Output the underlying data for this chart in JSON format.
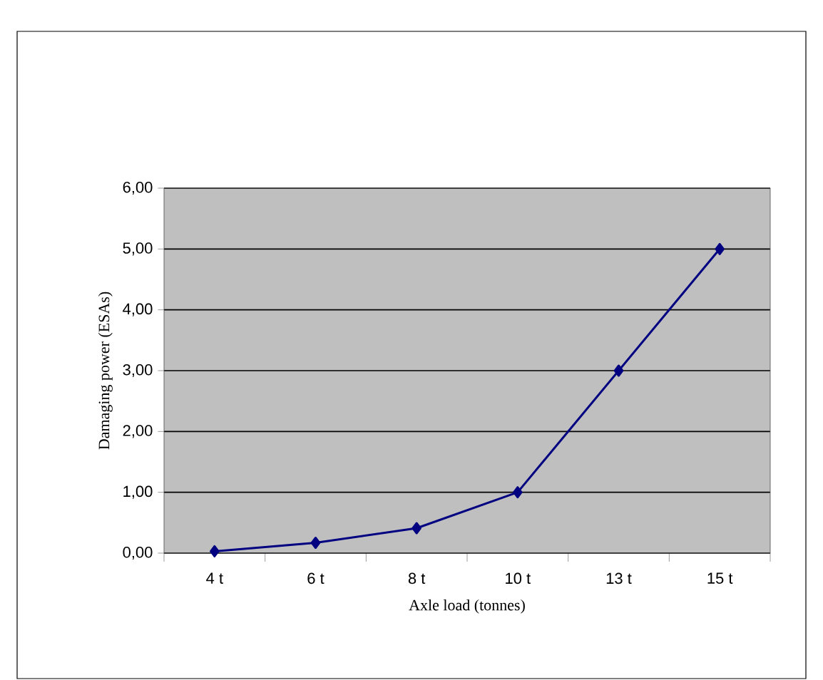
{
  "chart_data": {
    "type": "line",
    "xlabel": "Axle load (tonnes)",
    "ylabel": "Damaging power (ESAs)",
    "categories": [
      "4 t",
      "6 t",
      "8 t",
      "10 t",
      "13 t",
      "15 t"
    ],
    "series": [
      {
        "color": "#000080",
        "values": [
          0.03,
          0.17,
          0.41,
          1.0,
          3.0,
          5.0
        ]
      }
    ],
    "ylim": [
      0,
      6
    ],
    "yticks": [
      {
        "value": 0,
        "label": "0,00"
      },
      {
        "value": 1,
        "label": "1,00"
      },
      {
        "value": 2,
        "label": "2,00"
      },
      {
        "value": 3,
        "label": "3,00"
      },
      {
        "value": 4,
        "label": "4,00"
      },
      {
        "value": 5,
        "label": "5,00"
      },
      {
        "value": 6,
        "label": "6,00"
      }
    ],
    "grid": "y",
    "marker": "diamond",
    "line_style": "solid"
  }
}
